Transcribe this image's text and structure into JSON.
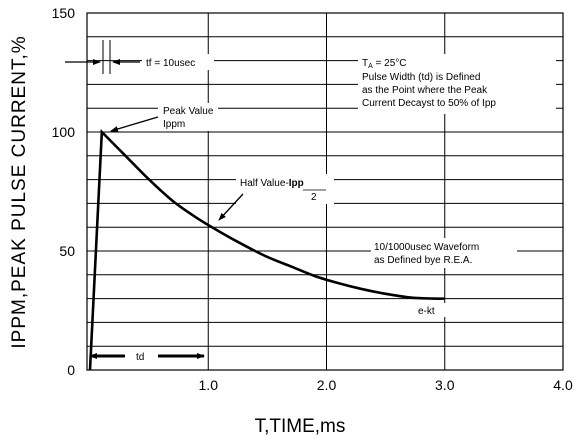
{
  "chart_data": {
    "type": "line",
    "xlabel": "T,TIME,ms",
    "ylabel": "IPPM,PEAK PULSE  CURRENT,%",
    "xlim": [
      0,
      4
    ],
    "ylim": [
      0,
      150
    ],
    "grid": true,
    "x_ticks": [
      "1.0",
      "2.0",
      "3.0",
      "4.0"
    ],
    "y_ticks": [
      "0",
      "50",
      "100",
      "150"
    ],
    "series": [
      {
        "x": [
          0,
          0.1,
          0.3,
          0.5,
          0.7,
          0.9,
          1.1,
          1.3,
          1.5,
          1.7,
          1.9,
          2.1,
          2.3,
          2.5,
          2.7,
          2.9,
          3.0
        ],
        "y": [
          0,
          100,
          90,
          80,
          71,
          64,
          58,
          52.5,
          47.5,
          43.5,
          39.5,
          36.5,
          34,
          32,
          30.5,
          30,
          30
        ]
      }
    ],
    "annotations": {
      "tf": "tf = 10usec",
      "peak_value": "Peak Value",
      "ippm": "Ippm",
      "ta_prefix": "T",
      "ta_sub": "A",
      "ta_suffix": " = 25°C",
      "pulse_width_1": "Pulse Width (td) is Defined",
      "pulse_width_2": "as the Point where the Peak",
      "pulse_width_3": "Current Decayst to 50% of Ipp",
      "half_value": "Half Value-",
      "half_ipp": "Ipp",
      "half_div": "2",
      "waveform_1": "10/1000usec Waveform",
      "waveform_2": "as Defined bye R.E.A.",
      "ekt": "e-kt",
      "td": "td"
    }
  }
}
